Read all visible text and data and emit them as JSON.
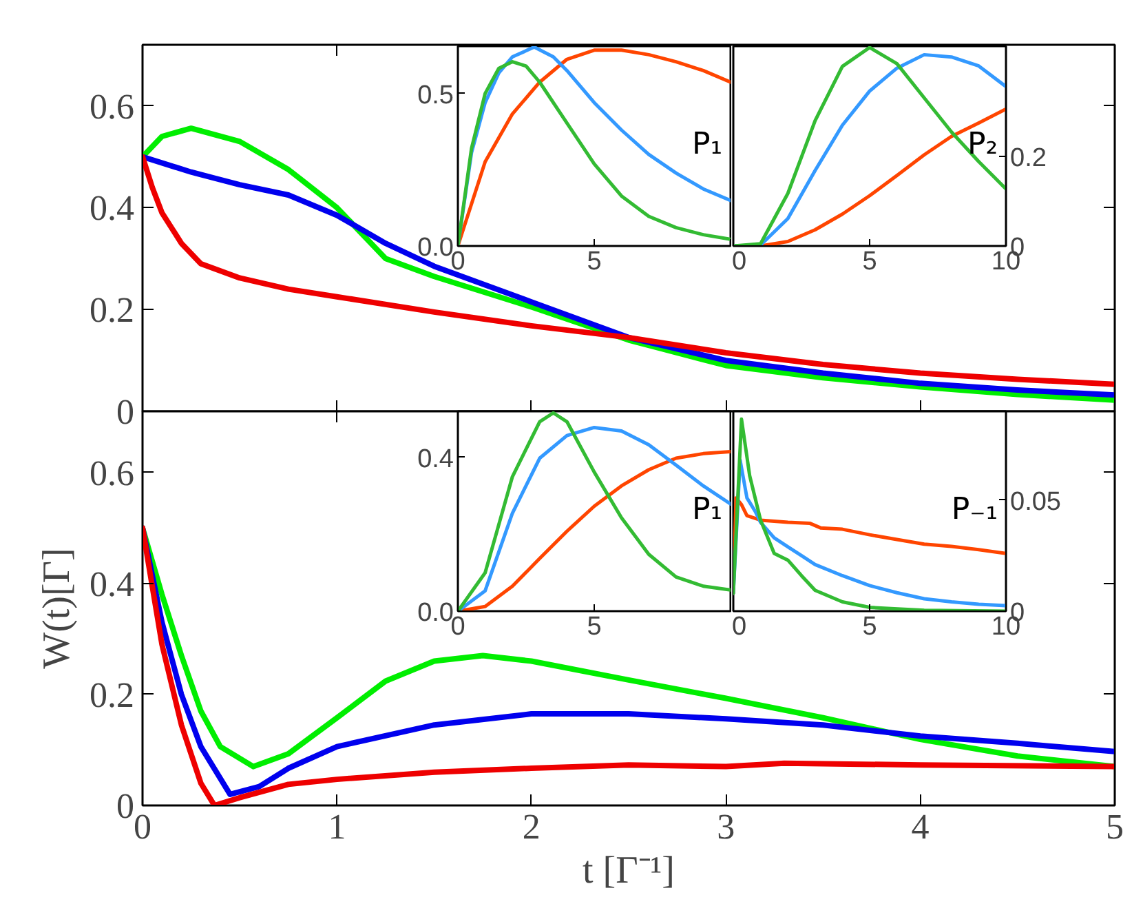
{
  "chart_data": [
    {
      "type": "line",
      "xlim": [
        0,
        5
      ],
      "ylim": [
        0,
        0.72
      ],
      "xticks": [
        0,
        1,
        2,
        3,
        4,
        5
      ],
      "yticks": [
        0,
        0.2,
        0.4,
        0.6
      ],
      "tick_labels": "y",
      "series": [
        {
          "color": "#00ee00",
          "x": [
            0,
            0.1,
            0.25,
            0.5,
            0.75,
            1,
            1.25,
            1.5,
            2,
            2.5,
            3,
            3.5,
            4,
            4.5,
            5
          ],
          "values": [
            0.5,
            0.54,
            0.556,
            0.53,
            0.475,
            0.4,
            0.3,
            0.265,
            0.205,
            0.14,
            0.09,
            0.066,
            0.048,
            0.033,
            0.022
          ]
        },
        {
          "color": "#0000ee",
          "x": [
            0,
            0.25,
            0.5,
            0.75,
            1,
            1.25,
            1.5,
            2,
            2.5,
            3,
            3.5,
            4,
            4.5,
            5
          ],
          "values": [
            0.5,
            0.47,
            0.445,
            0.425,
            0.385,
            0.33,
            0.285,
            0.215,
            0.145,
            0.1,
            0.075,
            0.055,
            0.042,
            0.032
          ]
        },
        {
          "color": "#ee0000",
          "x": [
            0,
            0.05,
            0.1,
            0.2,
            0.3,
            0.5,
            0.75,
            1,
            1.5,
            2,
            2.5,
            3,
            3.5,
            4,
            4.5,
            5
          ],
          "values": [
            0.5,
            0.44,
            0.39,
            0.33,
            0.29,
            0.262,
            0.24,
            0.225,
            0.195,
            0.168,
            0.145,
            0.115,
            0.092,
            0.075,
            0.063,
            0.053
          ]
        }
      ]
    },
    {
      "type": "line",
      "xlim": [
        0,
        10
      ],
      "ylim": [
        0,
        0.655
      ],
      "xticks": [
        0,
        5,
        {
          "value": 10,
          "label": null
        }
      ],
      "yticks": [
        {
          "value": 0,
          "label": "0.0"
        },
        0.5
      ],
      "annotations": [
        "P₁"
      ],
      "series": [
        {
          "color": "#ff4500",
          "x": [
            0,
            1,
            2,
            3,
            4,
            5,
            6,
            7,
            8,
            9,
            10
          ],
          "values": [
            0,
            0.276,
            0.433,
            0.537,
            0.612,
            0.642,
            0.642,
            0.627,
            0.604,
            0.575,
            0.537
          ]
        },
        {
          "color": "#3399ff",
          "x": [
            0,
            0.5,
            1,
            1.5,
            2,
            2.8,
            3.5,
            4,
            5,
            6,
            7,
            8,
            9,
            10
          ],
          "values": [
            0,
            0.306,
            0.47,
            0.567,
            0.62,
            0.652,
            0.62,
            0.575,
            0.47,
            0.38,
            0.3,
            0.239,
            0.187,
            0.149
          ]
        },
        {
          "color": "#33bb33",
          "x": [
            0,
            0.5,
            1,
            1.5,
            2,
            2.5,
            3,
            4,
            5,
            6,
            7,
            8,
            9,
            10
          ],
          "values": [
            0,
            0.32,
            0.5,
            0.582,
            0.604,
            0.59,
            0.537,
            0.403,
            0.269,
            0.164,
            0.097,
            0.06,
            0.037,
            0.022
          ]
        }
      ]
    },
    {
      "type": "line",
      "xlim": [
        0,
        10
      ],
      "y2lim": [
        0,
        0.445
      ],
      "xticks": [
        0,
        5,
        10
      ],
      "y2ticks": [
        0,
        0.2
      ],
      "annotations": [
        "P₂"
      ],
      "series": [
        {
          "color": "#ff4500",
          "axis": "y2",
          "x": [
            0,
            1,
            2,
            3,
            4,
            5,
            6,
            7,
            8,
            9,
            10
          ],
          "values": [
            0,
            0,
            0.01,
            0.036,
            0.071,
            0.112,
            0.157,
            0.203,
            0.244,
            0.274,
            0.305
          ]
        },
        {
          "color": "#3399ff",
          "axis": "y2",
          "x": [
            0,
            1,
            2,
            3,
            4,
            5,
            6,
            7,
            8,
            9,
            10
          ],
          "values": [
            0,
            0.002,
            0.061,
            0.168,
            0.269,
            0.345,
            0.396,
            0.426,
            0.421,
            0.401,
            0.355
          ]
        },
        {
          "color": "#33bb33",
          "axis": "y2",
          "x": [
            0,
            1,
            2,
            3,
            4,
            5,
            6,
            7,
            8,
            9,
            10
          ],
          "values": [
            0,
            0.005,
            0.117,
            0.279,
            0.4,
            0.442,
            0.406,
            0.33,
            0.254,
            0.188,
            0.127
          ]
        }
      ]
    },
    {
      "type": "line",
      "xlim": [
        0,
        5
      ],
      "ylim": [
        0,
        0.71
      ],
      "xticks": [
        0,
        1,
        2,
        3,
        4,
        5
      ],
      "yticks": [
        0,
        0.2,
        0.4,
        0.6
      ],
      "xlabel": "t [Γ⁻¹]",
      "ylabel": "W(t)[Γ]",
      "series": [
        {
          "color": "#00ee00",
          "x": [
            0,
            0.1,
            0.2,
            0.3,
            0.4,
            0.57,
            0.75,
            1,
            1.25,
            1.5,
            1.75,
            2,
            2.5,
            3,
            3.5,
            4,
            4.5,
            5
          ],
          "values": [
            0.5,
            0.38,
            0.27,
            0.17,
            0.106,
            0.07,
            0.093,
            0.158,
            0.224,
            0.26,
            0.27,
            0.26,
            0.226,
            0.193,
            0.158,
            0.119,
            0.089,
            0.07
          ]
        },
        {
          "color": "#0000ee",
          "x": [
            0,
            0.1,
            0.2,
            0.3,
            0.45,
            0.6,
            0.75,
            1,
            1.5,
            2,
            2.5,
            3,
            3.5,
            4,
            4.5,
            5
          ],
          "values": [
            0.5,
            0.33,
            0.2,
            0.106,
            0.02,
            0.034,
            0.067,
            0.106,
            0.145,
            0.165,
            0.165,
            0.156,
            0.145,
            0.125,
            0.112,
            0.097
          ]
        },
        {
          "color": "#ee0000",
          "x": [
            0,
            0.1,
            0.2,
            0.3,
            0.37,
            0.5,
            0.75,
            1,
            1.5,
            2,
            2.5,
            3,
            3.3,
            4,
            5
          ],
          "values": [
            0.5,
            0.29,
            0.145,
            0.04,
            0.0,
            0.014,
            0.038,
            0.047,
            0.06,
            0.067,
            0.073,
            0.07,
            0.076,
            0.073,
            0.07
          ]
        }
      ]
    },
    {
      "type": "line",
      "xlim": [
        0,
        10
      ],
      "ylim": [
        0,
        0.52
      ],
      "xticks": [
        0,
        5,
        {
          "value": 10,
          "label": null
        }
      ],
      "yticks": [
        {
          "value": 0,
          "label": "0.0"
        },
        0.4
      ],
      "annotations": [
        "P₁"
      ],
      "series": [
        {
          "color": "#ff4500",
          "x": [
            0,
            1,
            2,
            3,
            4,
            5,
            6,
            7,
            8,
            9,
            10
          ],
          "values": [
            0,
            0.012,
            0.065,
            0.137,
            0.208,
            0.273,
            0.326,
            0.368,
            0.398,
            0.41,
            0.415
          ]
        },
        {
          "color": "#3399ff",
          "x": [
            0,
            1,
            2,
            3,
            4,
            5,
            6,
            7,
            8,
            9,
            10
          ],
          "values": [
            0,
            0.053,
            0.255,
            0.398,
            0.457,
            0.478,
            0.469,
            0.433,
            0.38,
            0.326,
            0.279
          ]
        },
        {
          "color": "#33bb33",
          "x": [
            0,
            1,
            2,
            3,
            3.5,
            4,
            5,
            6,
            7,
            8,
            9,
            10
          ],
          "values": [
            0,
            0.1,
            0.35,
            0.493,
            0.516,
            0.493,
            0.362,
            0.243,
            0.148,
            0.089,
            0.065,
            0.055
          ]
        }
      ]
    },
    {
      "type": "line",
      "xlim": [
        0,
        10
      ],
      "y2lim": [
        0,
        0.09
      ],
      "xticks": [
        0,
        5,
        10
      ],
      "y2ticks": [
        0,
        0.05
      ],
      "annotations": [
        "P₋₁"
      ],
      "series": [
        {
          "color": "#ff4500",
          "axis": "y2",
          "x": [
            0,
            0.1,
            0.3,
            0.5,
            1,
            2,
            2.8,
            3.2,
            4,
            5,
            6,
            7,
            8,
            9,
            10
          ],
          "values": [
            0.008,
            0.051,
            0.048,
            0.043,
            0.041,
            0.04,
            0.0396,
            0.0375,
            0.0369,
            0.0344,
            0.0323,
            0.0302,
            0.0292,
            0.0277,
            0.026
          ]
        },
        {
          "color": "#3399ff",
          "axis": "y2",
          "x": [
            0,
            0.25,
            0.5,
            0.8,
            1,
            1.5,
            2,
            2.5,
            3,
            4,
            5,
            6,
            7,
            8,
            9,
            10
          ],
          "values": [
            0.008,
            0.068,
            0.051,
            0.045,
            0.04,
            0.033,
            0.029,
            0.025,
            0.021,
            0.016,
            0.0115,
            0.0083,
            0.0056,
            0.0042,
            0.0031,
            0.0025
          ]
        },
        {
          "color": "#33bb33",
          "axis": "y2",
          "x": [
            0,
            0.3,
            0.6,
            1,
            1.5,
            2,
            2.5,
            3,
            4,
            5,
            7,
            10
          ],
          "values": [
            0.008,
            0.0865,
            0.061,
            0.041,
            0.026,
            0.023,
            0.016,
            0.0094,
            0.0042,
            0.0017,
            0.0004,
            0
          ]
        }
      ]
    }
  ]
}
